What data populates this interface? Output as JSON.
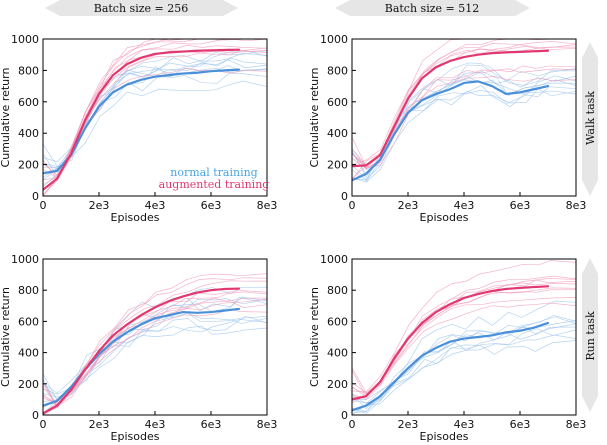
{
  "header": {
    "col_titles": [
      "Batch size = 256",
      "Batch size = 512"
    ],
    "row_titles": [
      "Walk task",
      "Run task"
    ]
  },
  "colors": {
    "normal": "#4a90d9",
    "normal_light": "#9cc4ec",
    "augmented": "#e0386f",
    "augmented_light": "#f29ab7",
    "banner_fill": "#e6e6e6"
  },
  "legend": {
    "items": [
      {
        "label": "normal training",
        "color": "#4aa6e0"
      },
      {
        "label": "augmented training",
        "color": "#e0386f"
      }
    ]
  },
  "chart_data": [
    {
      "type": "line",
      "panel": "walk-256",
      "xlabel": "Episodes",
      "ylabel": "Cumulative return",
      "xlim": [
        0,
        8000
      ],
      "ylim": [
        0,
        1000
      ],
      "xticks": [
        "0",
        "2e3",
        "4e3",
        "6e3",
        "8e3"
      ],
      "yticks": [
        "0",
        "200",
        "400",
        "600",
        "800",
        "1000"
      ],
      "series": [
        {
          "name": "normal training",
          "x": [
            0,
            500,
            1000,
            1500,
            2000,
            2500,
            3000,
            3500,
            4000,
            4500,
            5000,
            5500,
            6000,
            6500,
            7000
          ],
          "y": [
            145,
            160,
            260,
            430,
            570,
            660,
            710,
            740,
            760,
            770,
            780,
            785,
            795,
            800,
            805
          ]
        },
        {
          "name": "augmented training",
          "x": [
            0,
            500,
            1000,
            1500,
            2000,
            2500,
            3000,
            3500,
            4000,
            4500,
            5000,
            5500,
            6000,
            6500,
            7000
          ],
          "y": [
            40,
            110,
            270,
            480,
            650,
            770,
            840,
            880,
            905,
            915,
            920,
            925,
            928,
            930,
            932
          ]
        }
      ]
    },
    {
      "type": "line",
      "panel": "walk-512",
      "xlabel": "Episodes",
      "ylabel": "Cumulative return",
      "xlim": [
        0,
        8000
      ],
      "ylim": [
        0,
        1000
      ],
      "xticks": [
        "0",
        "2e3",
        "4e3",
        "6e3",
        "8e3"
      ],
      "yticks": [
        "0",
        "200",
        "400",
        "600",
        "800",
        "1000"
      ],
      "series": [
        {
          "name": "normal training",
          "x": [
            0,
            500,
            1000,
            1500,
            2000,
            2500,
            3000,
            3500,
            4000,
            4500,
            5000,
            5500,
            6000,
            6500,
            7000
          ],
          "y": [
            100,
            140,
            230,
            390,
            530,
            610,
            650,
            680,
            720,
            730,
            700,
            650,
            660,
            680,
            700
          ]
        },
        {
          "name": "augmented training",
          "x": [
            0,
            500,
            1000,
            1500,
            2000,
            2500,
            3000,
            3500,
            4000,
            4500,
            5000,
            5500,
            6000,
            6500,
            7000
          ],
          "y": [
            190,
            195,
            260,
            440,
            620,
            750,
            820,
            860,
            885,
            900,
            910,
            915,
            918,
            922,
            925
          ]
        }
      ]
    },
    {
      "type": "line",
      "panel": "run-256",
      "xlabel": "Episodes",
      "ylabel": "Cumulative return",
      "xlim": [
        0,
        8000
      ],
      "ylim": [
        0,
        1000
      ],
      "xticks": [
        "0",
        "2e3",
        "4e3",
        "6e3",
        "8e3"
      ],
      "yticks": [
        "0",
        "200",
        "400",
        "600",
        "800",
        "1000"
      ],
      "series": [
        {
          "name": "normal training",
          "x": [
            0,
            500,
            1000,
            1500,
            2000,
            2500,
            3000,
            3500,
            4000,
            4500,
            5000,
            5500,
            6000,
            6500,
            7000
          ],
          "y": [
            60,
            90,
            180,
            290,
            390,
            470,
            530,
            580,
            620,
            640,
            660,
            655,
            660,
            670,
            680
          ]
        },
        {
          "name": "augmented training",
          "x": [
            0,
            500,
            1000,
            1500,
            2000,
            2500,
            3000,
            3500,
            4000,
            4500,
            5000,
            5500,
            6000,
            6500,
            7000
          ],
          "y": [
            10,
            60,
            160,
            290,
            410,
            510,
            580,
            640,
            690,
            730,
            760,
            785,
            800,
            808,
            810
          ]
        }
      ]
    },
    {
      "type": "line",
      "panel": "run-512",
      "xlabel": "Episodes",
      "ylabel": "Cumulative return",
      "xlim": [
        0,
        8000
      ],
      "ylim": [
        0,
        1000
      ],
      "xticks": [
        "0",
        "2e3",
        "4e3",
        "6e3",
        "8e3"
      ],
      "yticks": [
        "0",
        "200",
        "400",
        "600",
        "800",
        "1000"
      ],
      "series": [
        {
          "name": "normal training",
          "x": [
            0,
            500,
            1000,
            1500,
            2000,
            2500,
            3000,
            3500,
            4000,
            4500,
            5000,
            5500,
            6000,
            6500,
            7000
          ],
          "y": [
            30,
            60,
            120,
            210,
            300,
            380,
            430,
            470,
            490,
            500,
            510,
            530,
            540,
            560,
            590
          ]
        },
        {
          "name": "augmented training",
          "x": [
            0,
            500,
            1000,
            1500,
            2000,
            2500,
            3000,
            3500,
            4000,
            4500,
            5000,
            5500,
            6000,
            6500,
            7000
          ],
          "y": [
            100,
            120,
            210,
            360,
            490,
            590,
            660,
            710,
            750,
            775,
            795,
            808,
            815,
            820,
            825
          ]
        }
      ]
    }
  ]
}
